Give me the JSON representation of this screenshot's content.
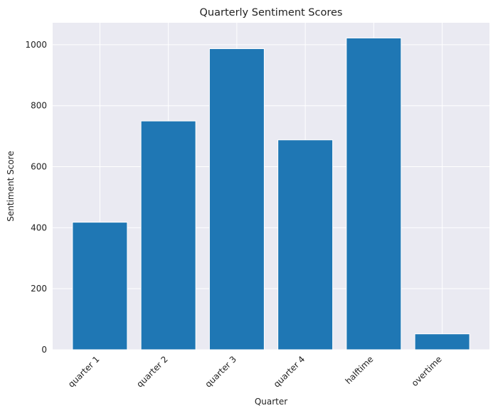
{
  "chart_data": {
    "type": "bar",
    "title": "Quarterly Sentiment Scores",
    "xlabel": "Quarter",
    "ylabel": "Sentiment Score",
    "categories": [
      "quarter 1",
      "quarter 2",
      "quarter 3",
      "quarter 4",
      "halftime",
      "overtime"
    ],
    "values": [
      418,
      750,
      987,
      688,
      1022,
      52
    ],
    "ylim": [
      0,
      1072
    ],
    "yticks": [
      0,
      200,
      400,
      600,
      800,
      1000
    ],
    "grid": true,
    "bar_color": "#1f77b4",
    "background_color": "#eaeaf2",
    "grid_color": "#ffffff"
  }
}
